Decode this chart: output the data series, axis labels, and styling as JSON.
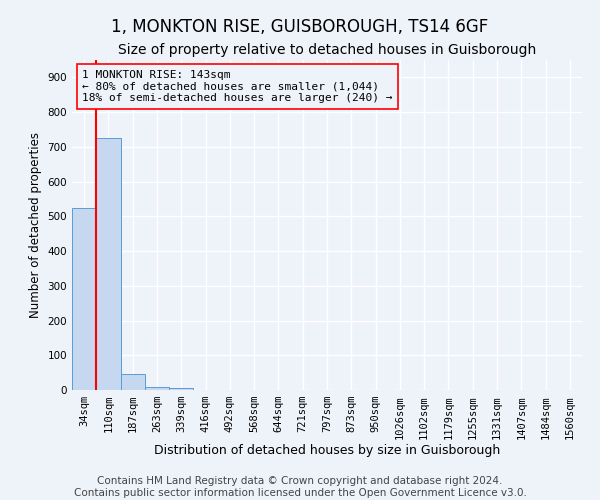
{
  "title": "1, MONKTON RISE, GUISBOROUGH, TS14 6GF",
  "subtitle": "Size of property relative to detached houses in Guisborough",
  "xlabel": "Distribution of detached houses by size in Guisborough",
  "ylabel": "Number of detached properties",
  "categories": [
    "34sqm",
    "110sqm",
    "187sqm",
    "263sqm",
    "339sqm",
    "416sqm",
    "492sqm",
    "568sqm",
    "644sqm",
    "721sqm",
    "797sqm",
    "873sqm",
    "950sqm",
    "1026sqm",
    "1102sqm",
    "1179sqm",
    "1255sqm",
    "1331sqm",
    "1407sqm",
    "1484sqm",
    "1560sqm"
  ],
  "values": [
    525,
    725,
    45,
    10,
    5,
    0,
    0,
    0,
    0,
    0,
    0,
    0,
    0,
    0,
    0,
    0,
    0,
    0,
    0,
    0,
    0
  ],
  "bar_color": "#c5d8f0",
  "bar_edge_color": "#5b9bd5",
  "red_line_bin": 1,
  "annotation_title": "1 MONKTON RISE: 143sqm",
  "annotation_line2": "← 80% of detached houses are smaller (1,044)",
  "annotation_line3": "18% of semi-detached houses are larger (240) →",
  "ylim": [
    0,
    950
  ],
  "yticks": [
    0,
    100,
    200,
    300,
    400,
    500,
    600,
    700,
    800,
    900
  ],
  "footer_line1": "Contains HM Land Registry data © Crown copyright and database right 2024.",
  "footer_line2": "Contains public sector information licensed under the Open Government Licence v3.0.",
  "background_color": "#eef2f9",
  "grid_color": "#ffffff",
  "title_fontsize": 12,
  "subtitle_fontsize": 10,
  "tick_fontsize": 7.5,
  "footer_fontsize": 7.5,
  "ylabel_fontsize": 8.5,
  "xlabel_fontsize": 9
}
